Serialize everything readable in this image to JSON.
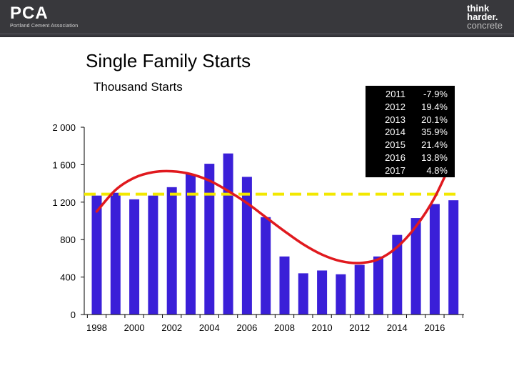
{
  "header": {
    "logo_left_text": "PCA",
    "logo_left_subtitle": "Portland Cement Association",
    "logo_right_lines": [
      "think",
      "harder.",
      "concrete"
    ]
  },
  "page_title": "Single Family Starts",
  "colors": {
    "bars": "#3a1fd8",
    "trend_curve": "#e0191e",
    "average_line": "#f2e800",
    "header": "#38383c",
    "growth_box": "#000000"
  },
  "growth_table": [
    {
      "year": "2011",
      "value": "-7.9%"
    },
    {
      "year": "2012",
      "value": "19.4%"
    },
    {
      "year": "2013",
      "value": "20.1%"
    },
    {
      "year": "2014",
      "value": "35.9%"
    },
    {
      "year": "2015",
      "value": "21.4%"
    },
    {
      "year": "2016",
      "value": "13.8%"
    },
    {
      "year": "2017",
      "value": "4.8%"
    }
  ],
  "chart_data": {
    "type": "bar",
    "title": "",
    "subtitle": "Thousand Starts",
    "xlabel": "",
    "ylabel": "",
    "ylim": [
      0,
      2000
    ],
    "y_ticks": [
      0,
      400,
      800,
      1200,
      1600,
      2000
    ],
    "y_tick_labels": [
      "0",
      "400",
      "800",
      "1 200",
      "1 600",
      "2 000"
    ],
    "x_tick_labels": [
      "1998",
      "2000",
      "2002",
      "2004",
      "2006",
      "2008",
      "2010",
      "2012",
      "2014",
      "2016"
    ],
    "categories": [
      "1998",
      "1999",
      "2000",
      "2001",
      "2002",
      "2003",
      "2004",
      "2005",
      "2006",
      "2007",
      "2008",
      "2009",
      "2010",
      "2011",
      "2012",
      "2013",
      "2014",
      "2015",
      "2016",
      "2017"
    ],
    "values": [
      1270,
      1300,
      1230,
      1270,
      1360,
      1500,
      1610,
      1720,
      1470,
      1040,
      620,
      440,
      470,
      430,
      530,
      620,
      850,
      1030,
      1180,
      1220
    ],
    "average_line": 1285,
    "trend_curve": [
      {
        "x": 1998,
        "y": 1100
      },
      {
        "x": 1999,
        "y": 1330
      },
      {
        "x": 2000,
        "y": 1460
      },
      {
        "x": 2001,
        "y": 1520
      },
      {
        "x": 2002,
        "y": 1530
      },
      {
        "x": 2003,
        "y": 1500
      },
      {
        "x": 2004,
        "y": 1430
      },
      {
        "x": 2005,
        "y": 1320
      },
      {
        "x": 2006,
        "y": 1190
      },
      {
        "x": 2007,
        "y": 1040
      },
      {
        "x": 2008,
        "y": 890
      },
      {
        "x": 2009,
        "y": 750
      },
      {
        "x": 2010,
        "y": 640
      },
      {
        "x": 2011,
        "y": 570
      },
      {
        "x": 2012,
        "y": 550
      },
      {
        "x": 2013,
        "y": 590
      },
      {
        "x": 2014,
        "y": 720
      },
      {
        "x": 2015,
        "y": 940
      },
      {
        "x": 2016,
        "y": 1250
      },
      {
        "x": 2017,
        "y": 1680
      }
    ],
    "grid": false,
    "legend": "none"
  }
}
